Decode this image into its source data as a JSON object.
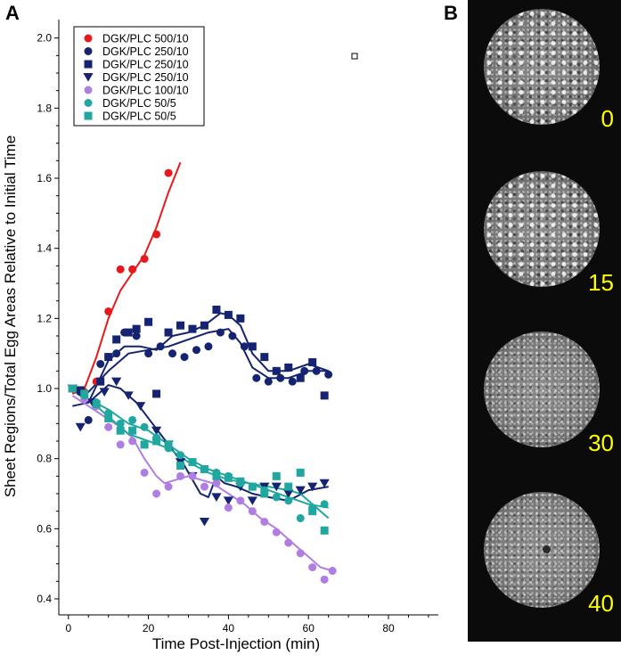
{
  "panel_a_label": "A",
  "panel_b_label": "B",
  "chart_data": {
    "type": "scatter",
    "xlabel": "Time Post-Injection (min)",
    "ylabel": "Sheet Regions/Total Egg Areas Relative to Initial Time",
    "xlim": [
      -2,
      90
    ],
    "ylim": [
      0.38,
      2.0
    ],
    "xticks": [
      0,
      20,
      40,
      60,
      80
    ],
    "yticks": [
      0.4,
      0.6,
      0.8,
      1.0,
      1.2,
      1.4,
      1.6,
      1.8,
      2.0
    ],
    "grid": false,
    "legend_position": "top-left",
    "series": [
      {
        "name": "DGK/PLC 500/10",
        "color": "#e8191b",
        "marker": "circle",
        "points": [
          [
            1,
            1.0
          ],
          [
            4,
            0.99
          ],
          [
            7,
            1.02
          ],
          [
            10,
            1.22
          ],
          [
            13,
            1.34
          ],
          [
            16,
            1.34
          ],
          [
            19,
            1.37
          ],
          [
            22,
            1.44
          ],
          [
            25,
            1.615
          ]
        ],
        "fit": [
          [
            1,
            0.985
          ],
          [
            4,
            1.0
          ],
          [
            7,
            1.09
          ],
          [
            10,
            1.2
          ],
          [
            13,
            1.28
          ],
          [
            16,
            1.33
          ],
          [
            19,
            1.38
          ],
          [
            22,
            1.46
          ],
          [
            25,
            1.56
          ],
          [
            28,
            1.645
          ]
        ]
      },
      {
        "name": "DGK/PLC 250/10",
        "color": "#152470",
        "marker": "circle",
        "points": [
          [
            1,
            1.0
          ],
          [
            3,
            0.99
          ],
          [
            5,
            0.91
          ],
          [
            8,
            1.07
          ],
          [
            10,
            1.09
          ],
          [
            12,
            1.1
          ],
          [
            14,
            1.16
          ],
          [
            17,
            1.15
          ],
          [
            20,
            1.1
          ],
          [
            23,
            1.12
          ],
          [
            26,
            1.1
          ],
          [
            29,
            1.09
          ],
          [
            32,
            1.11
          ],
          [
            35,
            1.12
          ],
          [
            38,
            1.16
          ],
          [
            41,
            1.15
          ],
          [
            44,
            1.12
          ],
          [
            47,
            1.03
          ],
          [
            50,
            1.02
          ],
          [
            53,
            1.03
          ],
          [
            56,
            1.02
          ],
          [
            59,
            1.05
          ],
          [
            62,
            1.05
          ],
          [
            65,
            1.04
          ]
        ],
        "fit": [
          [
            1,
            1.0
          ],
          [
            5,
            0.99
          ],
          [
            10,
            1.05
          ],
          [
            15,
            1.1
          ],
          [
            20,
            1.11
          ],
          [
            25,
            1.12
          ],
          [
            30,
            1.14
          ],
          [
            35,
            1.16
          ],
          [
            40,
            1.17
          ],
          [
            43,
            1.13
          ],
          [
            46,
            1.06
          ],
          [
            50,
            1.03
          ],
          [
            55,
            1.03
          ],
          [
            60,
            1.05
          ],
          [
            65,
            1.05
          ]
        ]
      },
      {
        "name": "DGK/PLC 250/10",
        "color": "#152470",
        "marker": "square",
        "points": [
          [
            1,
            1.0
          ],
          [
            3,
            0.995
          ],
          [
            8,
            1.02
          ],
          [
            10,
            1.09
          ],
          [
            12,
            1.14
          ],
          [
            15,
            1.16
          ],
          [
            17,
            1.17
          ],
          [
            20,
            1.19
          ],
          [
            22,
            0.985
          ],
          [
            25,
            1.16
          ],
          [
            28,
            1.18
          ],
          [
            31,
            1.17
          ],
          [
            34,
            1.18
          ],
          [
            37,
            1.225
          ],
          [
            40,
            1.21
          ],
          [
            43,
            1.2
          ],
          [
            46,
            1.12
          ],
          [
            49,
            1.09
          ],
          [
            52,
            1.05
          ],
          [
            55,
            1.06
          ],
          [
            58,
            1.03
          ],
          [
            61,
            1.075
          ],
          [
            64,
            0.98
          ]
        ],
        "fit": [
          [
            1,
            1.0
          ],
          [
            5,
            0.96
          ],
          [
            10,
            1.08
          ],
          [
            14,
            1.12
          ],
          [
            18,
            1.12
          ],
          [
            22,
            1.11
          ],
          [
            26,
            1.15
          ],
          [
            30,
            1.16
          ],
          [
            34,
            1.18
          ],
          [
            38,
            1.215
          ],
          [
            40,
            1.21
          ],
          [
            43,
            1.18
          ],
          [
            46,
            1.1
          ],
          [
            50,
            1.05
          ],
          [
            55,
            1.05
          ],
          [
            60,
            1.07
          ],
          [
            65,
            1.05
          ]
        ]
      },
      {
        "name": "DGK/PLC 250/10",
        "color": "#152470",
        "marker": "triangle-down",
        "points": [
          [
            1,
            1.0
          ],
          [
            3,
            0.89
          ],
          [
            6,
            0.96
          ],
          [
            9,
            0.99
          ],
          [
            12,
            1.02
          ],
          [
            15,
            0.98
          ],
          [
            18,
            0.95
          ],
          [
            22,
            0.88
          ],
          [
            25,
            0.84
          ],
          [
            28,
            0.79
          ],
          [
            31,
            0.75
          ],
          [
            34,
            0.62
          ],
          [
            37,
            0.69
          ],
          [
            40,
            0.68
          ],
          [
            43,
            0.72
          ],
          [
            46,
            0.68
          ],
          [
            49,
            0.72
          ],
          [
            52,
            0.72
          ],
          [
            55,
            0.7
          ],
          [
            58,
            0.71
          ],
          [
            61,
            0.72
          ],
          [
            64,
            0.73
          ]
        ],
        "fit": [
          [
            1,
            0.95
          ],
          [
            5,
            0.96
          ],
          [
            10,
            1.01
          ],
          [
            13,
            1.0
          ],
          [
            17,
            0.96
          ],
          [
            21,
            0.9
          ],
          [
            25,
            0.84
          ],
          [
            29,
            0.78
          ],
          [
            31,
            0.74
          ],
          [
            33,
            0.7
          ],
          [
            35,
            0.69
          ],
          [
            37,
            0.75
          ],
          [
            39,
            0.73
          ],
          [
            42,
            0.72
          ],
          [
            46,
            0.7
          ],
          [
            50,
            0.69
          ],
          [
            55,
            0.68
          ],
          [
            60,
            0.71
          ],
          [
            65,
            0.72
          ]
        ]
      },
      {
        "name": "DGK/PLC 100/10",
        "color": "#b07ee3",
        "marker": "circle",
        "points": [
          [
            1,
            1.0
          ],
          [
            4,
            0.97
          ],
          [
            7,
            0.95
          ],
          [
            10,
            0.89
          ],
          [
            13,
            0.84
          ],
          [
            16,
            0.85
          ],
          [
            19,
            0.76
          ],
          [
            22,
            0.7
          ],
          [
            25,
            0.72
          ],
          [
            28,
            0.75
          ],
          [
            31,
            0.75
          ],
          [
            34,
            0.72
          ],
          [
            37,
            0.73
          ],
          [
            40,
            0.66
          ],
          [
            43,
            0.68
          ],
          [
            46,
            0.65
          ],
          [
            49,
            0.62
          ],
          [
            52,
            0.59
          ],
          [
            55,
            0.56
          ],
          [
            58,
            0.53
          ],
          [
            61,
            0.49
          ],
          [
            64,
            0.455
          ],
          [
            66,
            0.48
          ]
        ],
        "fit": [
          [
            1,
            0.98
          ],
          [
            5,
            0.95
          ],
          [
            9,
            0.92
          ],
          [
            13,
            0.89
          ],
          [
            16,
            0.86
          ],
          [
            19,
            0.8
          ],
          [
            22,
            0.75
          ],
          [
            24,
            0.73
          ],
          [
            27,
            0.74
          ],
          [
            30,
            0.75
          ],
          [
            33,
            0.74
          ],
          [
            36,
            0.73
          ],
          [
            40,
            0.7
          ],
          [
            44,
            0.67
          ],
          [
            48,
            0.63
          ],
          [
            52,
            0.6
          ],
          [
            56,
            0.56
          ],
          [
            60,
            0.52
          ],
          [
            63,
            0.49
          ],
          [
            66,
            0.48
          ]
        ]
      },
      {
        "name": "DGK/PLC 50/5",
        "color": "#20a8a0",
        "marker": "circle",
        "points": [
          [
            1,
            1.0
          ],
          [
            4,
            0.98
          ],
          [
            7,
            0.96
          ],
          [
            10,
            0.93
          ],
          [
            13,
            0.9
          ],
          [
            16,
            0.91
          ],
          [
            19,
            0.89
          ],
          [
            22,
            0.86
          ],
          [
            25,
            0.83
          ],
          [
            28,
            0.81
          ],
          [
            31,
            0.79
          ],
          [
            34,
            0.77
          ],
          [
            37,
            0.76
          ],
          [
            40,
            0.75
          ],
          [
            43,
            0.73
          ],
          [
            46,
            0.72
          ],
          [
            49,
            0.71
          ],
          [
            52,
            0.69
          ],
          [
            55,
            0.68
          ],
          [
            58,
            0.63
          ],
          [
            61,
            0.66
          ],
          [
            64,
            0.67
          ]
        ],
        "fit": [
          [
            1,
            1.0
          ],
          [
            5,
            0.97
          ],
          [
            10,
            0.94
          ],
          [
            15,
            0.9
          ],
          [
            20,
            0.88
          ],
          [
            25,
            0.84
          ],
          [
            30,
            0.8
          ],
          [
            35,
            0.77
          ],
          [
            40,
            0.75
          ],
          [
            45,
            0.73
          ],
          [
            50,
            0.71
          ],
          [
            55,
            0.69
          ],
          [
            60,
            0.67
          ],
          [
            65,
            0.66
          ]
        ]
      },
      {
        "name": "DGK/PLC 50/5",
        "color": "#20a8a0",
        "marker": "square",
        "points": [
          [
            1,
            1.0
          ],
          [
            4,
            0.985
          ],
          [
            7,
            0.955
          ],
          [
            10,
            0.915
          ],
          [
            13,
            0.88
          ],
          [
            16,
            0.88
          ],
          [
            19,
            0.84
          ],
          [
            22,
            0.85
          ],
          [
            25,
            0.84
          ],
          [
            28,
            0.78
          ],
          [
            31,
            0.79
          ],
          [
            34,
            0.77
          ],
          [
            37,
            0.75
          ],
          [
            40,
            0.745
          ],
          [
            43,
            0.735
          ],
          [
            46,
            0.72
          ],
          [
            49,
            0.7
          ],
          [
            52,
            0.75
          ],
          [
            55,
            0.72
          ],
          [
            58,
            0.76
          ],
          [
            61,
            0.65
          ],
          [
            64,
            0.595
          ]
        ],
        "fit": [
          [
            1,
            1.0
          ],
          [
            5,
            0.97
          ],
          [
            10,
            0.92
          ],
          [
            15,
            0.87
          ],
          [
            20,
            0.85
          ],
          [
            25,
            0.83
          ],
          [
            30,
            0.79
          ],
          [
            35,
            0.76
          ],
          [
            40,
            0.74
          ],
          [
            45,
            0.73
          ],
          [
            50,
            0.72
          ],
          [
            55,
            0.71
          ],
          [
            58,
            0.7
          ],
          [
            62,
            0.66
          ],
          [
            65,
            0.63
          ]
        ]
      }
    ]
  },
  "panel_b": {
    "frames": [
      {
        "label": "0"
      },
      {
        "label": "15"
      },
      {
        "label": "30"
      },
      {
        "label": "40"
      }
    ]
  }
}
